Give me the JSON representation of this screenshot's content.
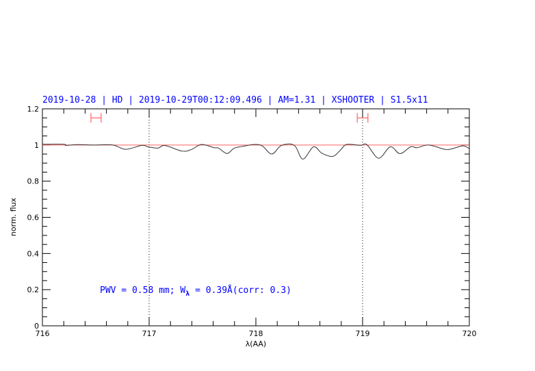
{
  "chart_data": {
    "type": "line",
    "title": "2019-10-28 | HD | 2019-10-29T00:12:09.496 | AM=1.31 | XSHOOTER | S1.5x11",
    "xlabel": "λ(AA)",
    "ylabel": "norm. flux",
    "xlim": [
      716,
      720
    ],
    "ylim": [
      0,
      1.2
    ],
    "x_ticks": [
      716,
      717,
      718,
      719,
      720
    ],
    "x_tick_labels": [
      "716",
      "717",
      "718",
      "719",
      "720"
    ],
    "y_ticks": [
      0,
      0.2,
      0.4,
      0.6,
      0.8,
      1,
      1.2
    ],
    "y_tick_labels": [
      "0",
      "0.2",
      "0.4",
      "0.6",
      "0.8",
      "1",
      "1.2"
    ],
    "grid": false,
    "reference_line": {
      "y": 1,
      "color": "#ff6060"
    },
    "vertical_markers": [
      717,
      719
    ],
    "intervals": [
      {
        "x": [
          716.455,
          716.55
        ],
        "y": 1.15,
        "color": "#ff6060"
      },
      {
        "x": [
          718.95,
          719.05
        ],
        "y": 1.15,
        "color": "#ff6060"
      }
    ],
    "annotation": {
      "pre": "PWV = 0.58 mm; W",
      "sub": "λ",
      "post": " = 0.39Å(corr: 0.3)"
    },
    "series": [
      {
        "color": "#333333",
        "x": [
          716.0,
          716.2,
          716.22,
          716.33,
          716.48,
          716.66,
          716.78,
          716.93,
          716.99,
          717.08,
          717.15,
          717.31,
          717.4,
          717.49,
          717.61,
          717.65,
          717.73,
          717.8,
          717.91,
          717.99,
          718.06,
          718.15,
          718.24,
          718.36,
          718.44,
          718.54,
          718.62,
          718.72,
          718.79,
          718.85,
          718.98,
          719.04,
          719.15,
          719.26,
          719.35,
          719.45,
          719.51,
          719.62,
          719.77,
          719.83,
          719.94,
          720.0
        ],
        "y": [
          1.004,
          1.004,
          0.998,
          1.002,
          1.0,
          1.0,
          0.976,
          0.998,
          0.99,
          0.983,
          0.997,
          0.966,
          0.976,
          1.003,
          0.985,
          0.983,
          0.953,
          0.983,
          0.996,
          1.003,
          0.995,
          0.95,
          0.998,
          0.998,
          0.922,
          0.99,
          0.954,
          0.937,
          0.97,
          1.003,
          0.998,
          1.002,
          0.927,
          0.99,
          0.952,
          0.99,
          0.985,
          1.0,
          0.976,
          0.978,
          0.995,
          0.98
        ]
      }
    ]
  }
}
